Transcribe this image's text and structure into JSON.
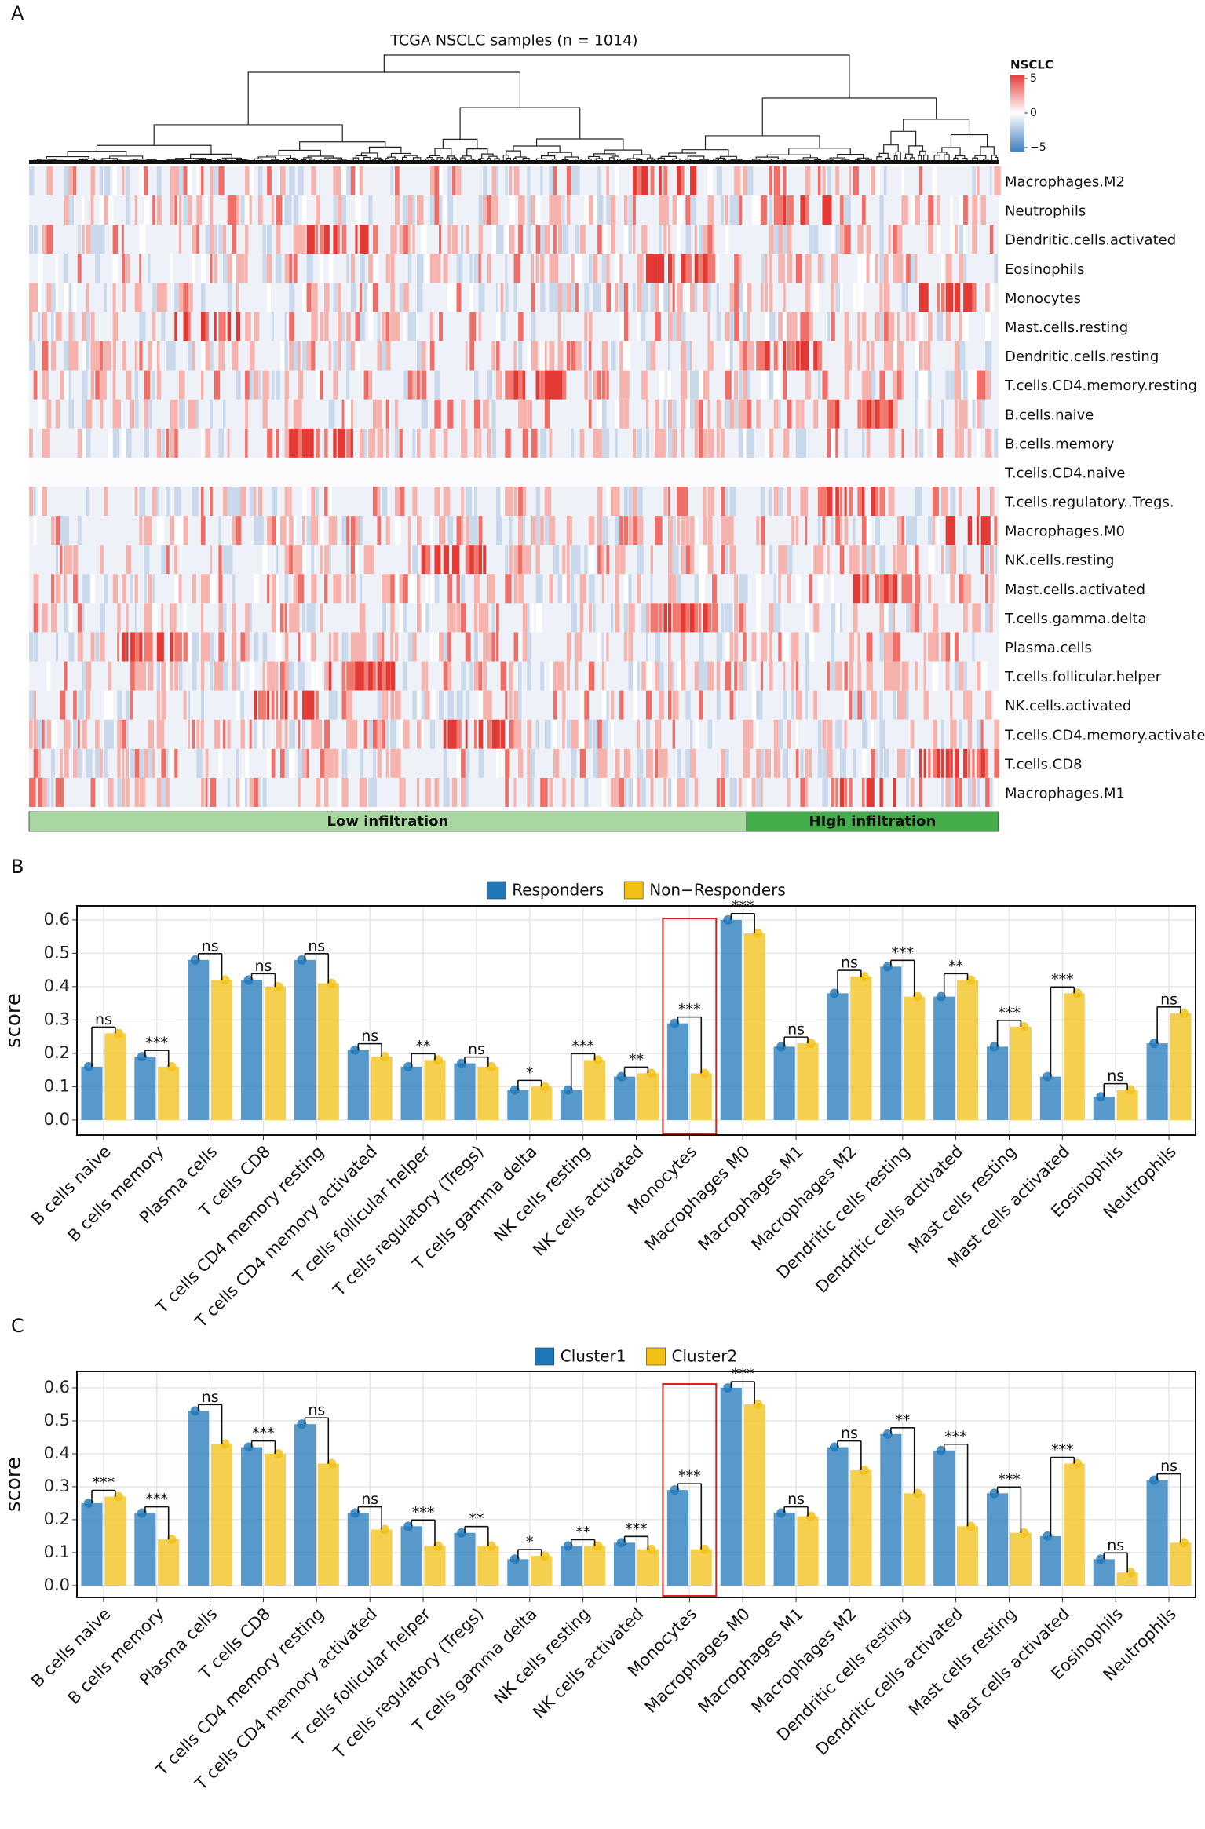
{
  "heatmap": {
    "panel_label": "A",
    "title": "TCGA NSCLC samples (n = 1014)",
    "legend_title": "NSCLC",
    "legend_ticks": [
      5,
      0,
      {
        "value": -5,
        "label": "−5"
      }
    ],
    "rows": [
      "Macrophages.M2",
      "Neutrophils",
      "Dendritic.cells.activated",
      "Eosinophils",
      "Monocytes",
      "Mast.cells.resting",
      "Dendritic.cells.resting",
      "T.cells.CD4.memory.resting",
      "B.cells.naive",
      "B.cells.memory",
      "T.cells.CD4.naive",
      "T.cells.regulatory..Tregs.",
      "Macrophages.M0",
      "NK.cells.resting",
      "Mast.cells.activated",
      "T.cells.gamma.delta",
      "Plasma.cells",
      "T.cells.follicular.helper",
      "NK.cells.activated",
      "T.cells.CD4.memory.activated",
      "T.cells.CD8",
      "Macrophages.M1"
    ],
    "groups": [
      {
        "label": "Low infiltration",
        "color": "#a8d8a0"
      },
      {
        "label": "HIgh infiltration",
        "color": "#44ac4a"
      }
    ]
  },
  "chart_data": [
    {
      "type": "range",
      "panel_label": "B",
      "y_label": "score",
      "categories": [
        "B cells naive",
        "B cells memory",
        "Plasma cells",
        "T cells CD8",
        "T cells CD4 memory resting",
        "T cells CD4 memory activated",
        "T cells follicular helper",
        "T cells regulatory (Tregs)",
        "T cells gamma delta",
        "NK cells resting",
        "NK cells activated",
        "Monocytes",
        "Macrophages M0",
        "Macrophages M1",
        "Macrophages M2",
        "Dendritic cells resting",
        "Dendritic cells activated",
        "Mast cells resting",
        "Mast cells activated",
        "Eosinophils",
        "Neutrophils"
      ],
      "series": [
        {
          "name": "Responders",
          "color": "#1f77b8",
          "values": [
            0.16,
            0.19,
            0.48,
            0.42,
            0.48,
            0.21,
            0.16,
            0.17,
            0.09,
            0.09,
            0.13,
            0.29,
            0.6,
            0.22,
            0.38,
            0.46,
            0.37,
            0.22,
            0.13,
            0.07,
            0.23
          ]
        },
        {
          "name": "Non−Responders",
          "color": "#f2c014",
          "values": [
            0.26,
            0.16,
            0.42,
            0.4,
            0.41,
            0.19,
            0.18,
            0.16,
            0.1,
            0.18,
            0.14,
            0.14,
            0.56,
            0.23,
            0.43,
            0.37,
            0.42,
            0.28,
            0.38,
            0.09,
            0.32
          ]
        }
      ],
      "significance": [
        "ns",
        "***",
        "ns",
        "ns",
        "ns",
        "ns",
        "**",
        "ns",
        "*",
        "***",
        "**",
        "***",
        "***",
        "ns",
        "ns",
        "***",
        "**",
        "***",
        "***",
        "ns",
        "ns"
      ],
      "highlight": "Monocytes",
      "ylim": [
        -0.045,
        0.642
      ],
      "yticks": [
        {
          "value": 0,
          "label": "0.0"
        },
        0.1,
        0.2,
        0.3,
        0.4,
        0.5,
        0.6
      ],
      "grid": true,
      "legend": "top"
    },
    {
      "type": "range",
      "panel_label": "C",
      "y_label": "score",
      "categories": [
        "B cells naive",
        "B cells memory",
        "Plasma cells",
        "T cells CD8",
        "T cells CD4 memory resting",
        "T cells CD4 memory activated",
        "T cells follicular helper",
        "T cells regulatory (Tregs)",
        "T cells gamma delta",
        "NK cells resting",
        "NK cells activated",
        "Monocytes",
        "Macrophages M0",
        "Macrophages M1",
        "Macrophages M2",
        "Dendritic cells resting",
        "Dendritic cells activated",
        "Mast cells resting",
        "Mast cells activated",
        "Eosinophils",
        "Neutrophils"
      ],
      "series": [
        {
          "name": "Cluster1",
          "color": "#1f77b8",
          "values": [
            0.25,
            0.22,
            0.53,
            0.42,
            0.49,
            0.22,
            0.18,
            0.16,
            0.08,
            0.12,
            0.13,
            0.29,
            0.6,
            0.22,
            0.42,
            0.46,
            0.41,
            0.28,
            0.15,
            0.08,
            0.32
          ]
        },
        {
          "name": "Cluster2",
          "color": "#f2c014",
          "values": [
            0.27,
            0.14,
            0.43,
            0.4,
            0.37,
            0.17,
            0.12,
            0.12,
            0.09,
            0.12,
            0.11,
            0.11,
            0.55,
            0.21,
            0.35,
            0.28,
            0.18,
            0.16,
            0.37,
            0.04,
            0.13
          ]
        }
      ],
      "significance": [
        "***",
        "***",
        "ns",
        "***",
        "ns",
        "ns",
        "***",
        "**",
        "*",
        "**",
        "***",
        "***",
        "***",
        "ns",
        "ns",
        "**",
        "***",
        "***",
        "***",
        "ns",
        "ns"
      ],
      "highlight": "Monocytes",
      "ylim": [
        -0.036,
        0.65
      ],
      "yticks": [
        {
          "value": 0,
          "label": "0.0"
        },
        0.1,
        0.2,
        0.3,
        0.4,
        0.5,
        0.6
      ],
      "grid": true,
      "legend": "top"
    }
  ]
}
